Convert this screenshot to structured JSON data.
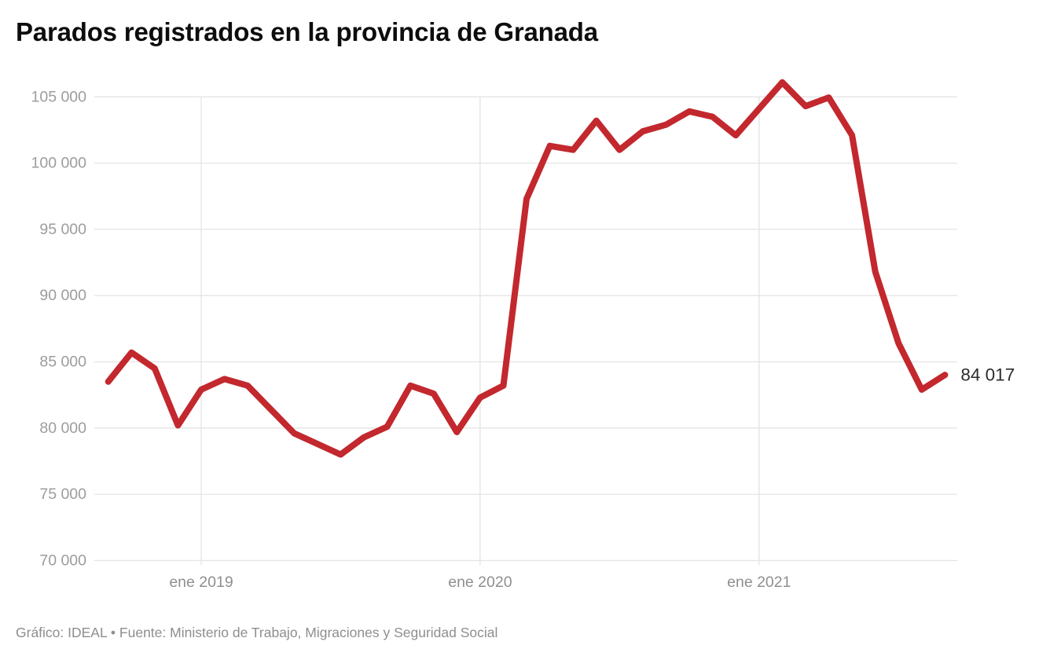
{
  "title": "Parados registrados en la provincia de Granada",
  "footer": "Gráfico: IDEAL • Fuente: Ministerio de Trabajo, Migraciones y Seguridad Social",
  "colors": {
    "line": "#c2282d",
    "grid": "#e4e4e4",
    "title_text": "#0d0d0d",
    "axis_text": "#9c9c9c",
    "x_axis_text": "#8f8f8f",
    "footer_text": "#8e8e8e",
    "end_label_text": "#2d2d2d",
    "background": "#ffffff"
  },
  "chart_data": {
    "type": "line",
    "title": "Parados registrados en la provincia de Granada",
    "xlabel": "",
    "ylabel": "",
    "ylim": [
      70000,
      105000
    ],
    "grid": "horizontal every 5000; vertical at each January tick",
    "legend_position": "none",
    "x": [
      "sep 2018",
      "oct 2018",
      "nov 2018",
      "dic 2018",
      "ene 2019",
      "feb 2019",
      "mar 2019",
      "abr 2019",
      "may 2019",
      "jun 2019",
      "jul 2019",
      "ago 2019",
      "sep 2019",
      "oct 2019",
      "nov 2019",
      "dic 2019",
      "ene 2020",
      "feb 2020",
      "mar 2020",
      "abr 2020",
      "may 2020",
      "jun 2020",
      "jul 2020",
      "ago 2020",
      "sep 2020",
      "oct 2020",
      "nov 2020",
      "dic 2020",
      "ene 2021",
      "feb 2021",
      "mar 2021",
      "abr 2021",
      "may 2021",
      "jun 2021",
      "jul 2021",
      "ago 2021",
      "sep 2021"
    ],
    "series": [
      {
        "name": "Parados registrados",
        "values": [
          83500,
          85700,
          84500,
          80200,
          82900,
          83700,
          83200,
          81400,
          79600,
          78800,
          78000,
          79300,
          80100,
          83200,
          82600,
          79700,
          82300,
          83200,
          97300,
          101300,
          101000,
          103200,
          101000,
          102400,
          102900,
          103900,
          103500,
          102100,
          104100,
          106100,
          104300,
          104950,
          102100,
          91800,
          86400,
          82900,
          84017
        ]
      }
    ],
    "y_ticks": [
      {
        "value": 105000,
        "label": "105 000"
      },
      {
        "value": 100000,
        "label": "100 000"
      },
      {
        "value": 95000,
        "label": "95 000"
      },
      {
        "value": 90000,
        "label": "90 000"
      },
      {
        "value": 85000,
        "label": "85 000"
      },
      {
        "value": 80000,
        "label": "80 000"
      },
      {
        "value": 75000,
        "label": "75 000"
      },
      {
        "value": 70000,
        "label": "70 000"
      }
    ],
    "x_ticks": [
      {
        "index": 4,
        "label": "ene 2019"
      },
      {
        "index": 16,
        "label": "ene 2020"
      },
      {
        "index": 28,
        "label": "ene 2021"
      }
    ],
    "end_label": {
      "value": 84017,
      "label": "84 017"
    }
  }
}
